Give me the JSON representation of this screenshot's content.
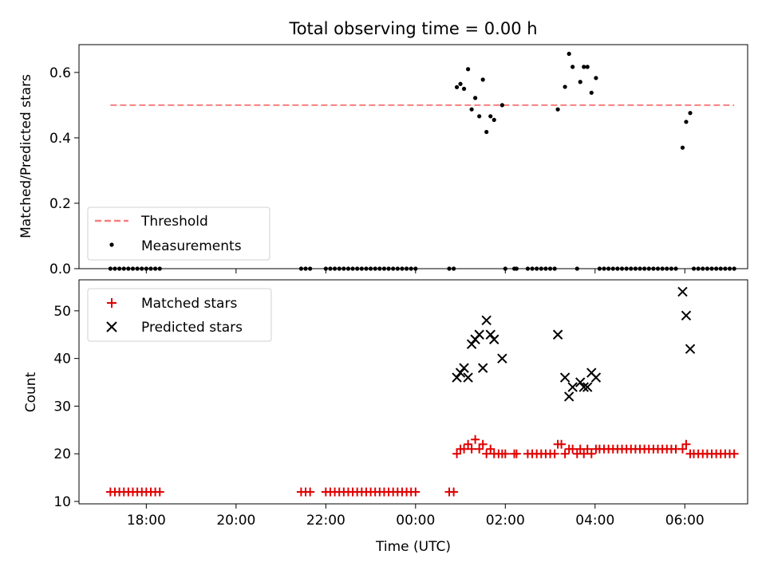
{
  "title": "Total observing time = 0.00 h",
  "colors": {
    "threshold": "#f77f7f",
    "measurement": "#000000",
    "matched": "#e00000",
    "predicted": "#000000"
  },
  "chart_data": [
    {
      "type": "scatter",
      "ylabel": "Matched/Predicted stars",
      "xlabel": "",
      "xlim": [
        16.5,
        31.4
      ],
      "ylim": [
        0.0,
        0.685
      ],
      "x_tick_values": [
        18,
        20,
        22,
        24,
        26,
        28,
        30
      ],
      "x_tick_labels": [
        "18:00",
        "20:00",
        "22:00",
        "00:00",
        "02:00",
        "04:00",
        "06:00"
      ],
      "y_tick_values": [
        0.0,
        0.2,
        0.4,
        0.6
      ],
      "y_tick_labels": [
        "0.0",
        "0.2",
        "0.4",
        "0.6"
      ],
      "legend_position": "lower-left",
      "threshold": {
        "name": "Threshold",
        "value": 0.5,
        "x_range": [
          17.2,
          31.1
        ]
      },
      "measurements": {
        "name": "Measurements",
        "nonzero": [
          [
            24.92,
            0.555
          ],
          [
            25.0,
            0.565
          ],
          [
            25.08,
            0.55
          ],
          [
            25.17,
            0.61
          ],
          [
            25.25,
            0.487
          ],
          [
            25.33,
            0.522
          ],
          [
            25.42,
            0.466
          ],
          [
            25.5,
            0.578
          ],
          [
            25.58,
            0.418
          ],
          [
            25.67,
            0.466
          ],
          [
            25.75,
            0.455
          ],
          [
            25.93,
            0.5
          ],
          [
            27.17,
            0.487
          ],
          [
            27.33,
            0.556
          ],
          [
            27.42,
            0.657
          ],
          [
            27.5,
            0.617
          ],
          [
            27.67,
            0.571
          ],
          [
            27.75,
            0.617
          ],
          [
            27.83,
            0.617
          ],
          [
            27.92,
            0.538
          ],
          [
            28.02,
            0.583
          ],
          [
            29.95,
            0.37
          ],
          [
            30.03,
            0.449
          ],
          [
            30.12,
            0.476
          ]
        ],
        "zero_x": [
          17.2,
          17.3,
          17.4,
          17.5,
          17.6,
          17.7,
          17.8,
          17.9,
          18.0,
          18.1,
          18.2,
          18.3,
          21.45,
          21.55,
          21.65,
          22.0,
          22.1,
          22.2,
          22.3,
          22.4,
          22.5,
          22.6,
          22.7,
          22.8,
          22.9,
          23.0,
          23.1,
          23.2,
          23.3,
          23.4,
          23.5,
          23.6,
          23.7,
          23.8,
          23.9,
          24.0,
          24.75,
          24.85,
          26.0,
          26.2,
          26.25,
          26.5,
          26.6,
          26.7,
          26.8,
          26.9,
          27.0,
          27.1,
          27.6,
          28.1,
          28.2,
          28.3,
          28.4,
          28.5,
          28.6,
          28.7,
          28.8,
          28.9,
          29.0,
          29.1,
          29.2,
          29.3,
          29.4,
          29.5,
          29.6,
          29.7,
          29.8,
          30.2,
          30.3,
          30.4,
          30.5,
          30.6,
          30.7,
          30.8,
          30.9,
          31.0,
          31.1
        ]
      }
    },
    {
      "type": "scatter",
      "ylabel": "Count",
      "xlabel": "Time (UTC)",
      "xlim": [
        16.5,
        31.4
      ],
      "ylim": [
        9.5,
        56.5
      ],
      "x_tick_values": [
        18,
        20,
        22,
        24,
        26,
        28,
        30
      ],
      "x_tick_labels": [
        "18:00",
        "20:00",
        "22:00",
        "00:00",
        "02:00",
        "04:00",
        "06:00"
      ],
      "y_tick_values": [
        10,
        20,
        30,
        40,
        50
      ],
      "y_tick_labels": [
        "10",
        "20",
        "30",
        "40",
        "50"
      ],
      "legend_position": "upper-left",
      "matched": {
        "name": "Matched stars",
        "points": [
          [
            17.2,
            12
          ],
          [
            17.3,
            12
          ],
          [
            17.4,
            12
          ],
          [
            17.5,
            12
          ],
          [
            17.6,
            12
          ],
          [
            17.7,
            12
          ],
          [
            17.8,
            12
          ],
          [
            17.9,
            12
          ],
          [
            18.0,
            12
          ],
          [
            18.1,
            12
          ],
          [
            18.2,
            12
          ],
          [
            18.3,
            12
          ],
          [
            21.45,
            12
          ],
          [
            21.55,
            12
          ],
          [
            21.65,
            12
          ],
          [
            22.0,
            12
          ],
          [
            22.1,
            12
          ],
          [
            22.2,
            12
          ],
          [
            22.3,
            12
          ],
          [
            22.4,
            12
          ],
          [
            22.5,
            12
          ],
          [
            22.6,
            12
          ],
          [
            22.7,
            12
          ],
          [
            22.8,
            12
          ],
          [
            22.9,
            12
          ],
          [
            23.0,
            12
          ],
          [
            23.1,
            12
          ],
          [
            23.2,
            12
          ],
          [
            23.3,
            12
          ],
          [
            23.4,
            12
          ],
          [
            23.5,
            12
          ],
          [
            23.6,
            12
          ],
          [
            23.7,
            12
          ],
          [
            23.8,
            12
          ],
          [
            23.9,
            12
          ],
          [
            24.0,
            12
          ],
          [
            24.75,
            12
          ],
          [
            24.85,
            12
          ],
          [
            24.92,
            20
          ],
          [
            25.0,
            21
          ],
          [
            25.08,
            21
          ],
          [
            25.17,
            22
          ],
          [
            25.25,
            21
          ],
          [
            25.33,
            23
          ],
          [
            25.42,
            21
          ],
          [
            25.5,
            22
          ],
          [
            25.58,
            20
          ],
          [
            25.67,
            21
          ],
          [
            25.75,
            20
          ],
          [
            25.85,
            20
          ],
          [
            25.93,
            20
          ],
          [
            26.0,
            20
          ],
          [
            26.2,
            20
          ],
          [
            26.25,
            20
          ],
          [
            26.5,
            20
          ],
          [
            26.6,
            20
          ],
          [
            26.7,
            20
          ],
          [
            26.8,
            20
          ],
          [
            26.9,
            20
          ],
          [
            27.0,
            20
          ],
          [
            27.1,
            20
          ],
          [
            27.17,
            22
          ],
          [
            27.25,
            22
          ],
          [
            27.33,
            20
          ],
          [
            27.42,
            21
          ],
          [
            27.5,
            21
          ],
          [
            27.6,
            20
          ],
          [
            27.67,
            21
          ],
          [
            27.75,
            20
          ],
          [
            27.83,
            21
          ],
          [
            27.92,
            20
          ],
          [
            28.02,
            21
          ],
          [
            28.1,
            21
          ],
          [
            28.2,
            21
          ],
          [
            28.3,
            21
          ],
          [
            28.4,
            21
          ],
          [
            28.5,
            21
          ],
          [
            28.6,
            21
          ],
          [
            28.7,
            21
          ],
          [
            28.8,
            21
          ],
          [
            28.9,
            21
          ],
          [
            29.0,
            21
          ],
          [
            29.1,
            21
          ],
          [
            29.2,
            21
          ],
          [
            29.3,
            21
          ],
          [
            29.4,
            21
          ],
          [
            29.5,
            21
          ],
          [
            29.6,
            21
          ],
          [
            29.7,
            21
          ],
          [
            29.8,
            21
          ],
          [
            29.95,
            21
          ],
          [
            30.03,
            22
          ],
          [
            30.12,
            20
          ],
          [
            30.2,
            20
          ],
          [
            30.3,
            20
          ],
          [
            30.4,
            20
          ],
          [
            30.5,
            20
          ],
          [
            30.6,
            20
          ],
          [
            30.7,
            20
          ],
          [
            30.8,
            20
          ],
          [
            30.9,
            20
          ],
          [
            31.0,
            20
          ],
          [
            31.1,
            20
          ]
        ]
      },
      "predicted": {
        "name": "Predicted stars",
        "points": [
          [
            24.92,
            36
          ],
          [
            25.0,
            37
          ],
          [
            25.08,
            38
          ],
          [
            25.17,
            36
          ],
          [
            25.25,
            43
          ],
          [
            25.33,
            44
          ],
          [
            25.42,
            45
          ],
          [
            25.5,
            38
          ],
          [
            25.58,
            48
          ],
          [
            25.67,
            45
          ],
          [
            25.75,
            44
          ],
          [
            25.93,
            40
          ],
          [
            27.17,
            45
          ],
          [
            27.33,
            36
          ],
          [
            27.42,
            32
          ],
          [
            27.5,
            34
          ],
          [
            27.67,
            35
          ],
          [
            27.75,
            34
          ],
          [
            27.83,
            34
          ],
          [
            27.92,
            37
          ],
          [
            28.02,
            36
          ],
          [
            29.95,
            54
          ],
          [
            30.03,
            49
          ],
          [
            30.12,
            42
          ]
        ]
      }
    }
  ]
}
